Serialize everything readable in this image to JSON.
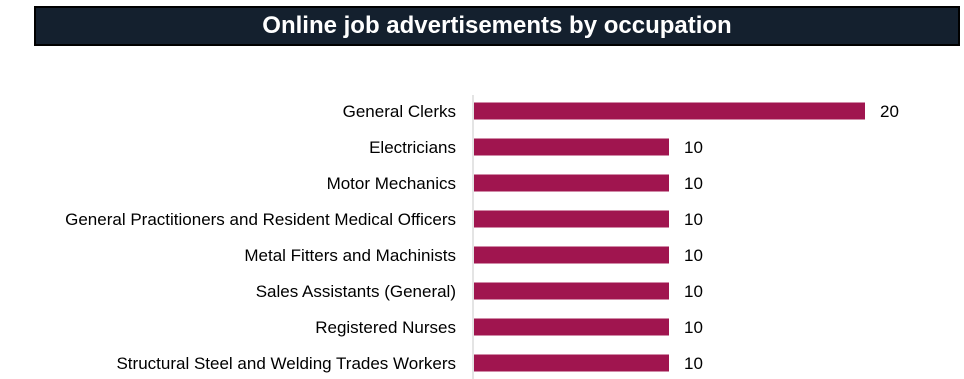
{
  "chart_data": {
    "type": "bar",
    "orientation": "horizontal",
    "title": "Online job advertisements by occupation",
    "categories": [
      "General Clerks",
      "Electricians",
      "Motor Mechanics",
      "General Practitioners and Resident Medical Officers",
      "Metal Fitters and Machinists",
      "Sales Assistants (General)",
      "Registered Nurses",
      "Structural Steel and Welding Trades Workers"
    ],
    "values": [
      20,
      10,
      10,
      10,
      10,
      10,
      10,
      10
    ],
    "data_labels": [
      "20",
      "10",
      "10",
      "10",
      "10",
      "10",
      "10",
      "10"
    ],
    "xlim": [
      0,
      20
    ],
    "grid": false,
    "legend": "none",
    "colors": {
      "bar": "#a0154f",
      "title_background": "#14202e",
      "title_text": "#ffffff",
      "axis": "#c8c8c8"
    }
  }
}
